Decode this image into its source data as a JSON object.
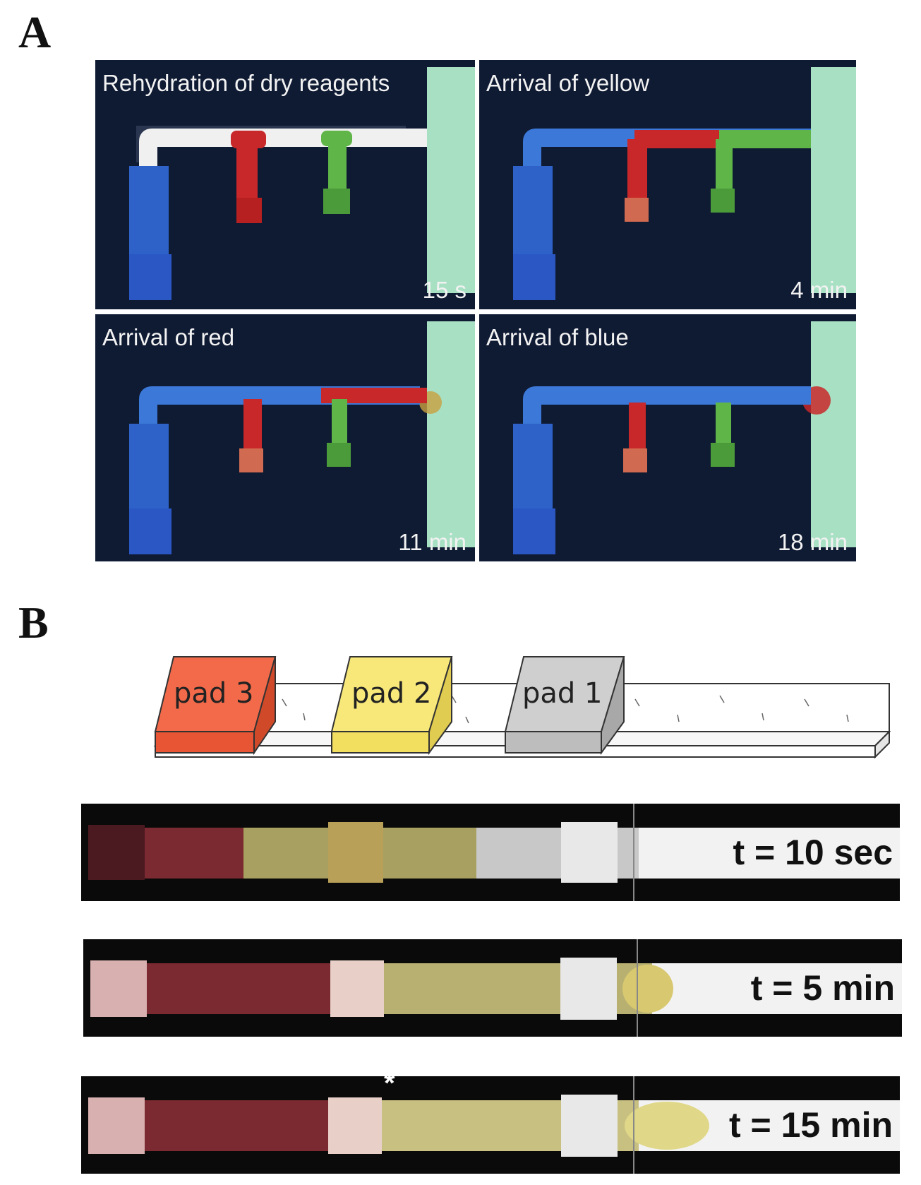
{
  "panel_a": {
    "label": "A",
    "frames": [
      {
        "caption": "Rehydration of dry reagents",
        "time": "15 s"
      },
      {
        "caption": "Arrival of yellow",
        "time": "4 min"
      },
      {
        "caption": "Arrival of red",
        "time": "11 min"
      },
      {
        "caption": "Arrival of blue",
        "time": "18 min"
      }
    ]
  },
  "panel_b": {
    "label": "B",
    "pads": [
      {
        "label": "pad 3",
        "color": "#f26a4a"
      },
      {
        "label": "pad 2",
        "color": "#f7e879"
      },
      {
        "label": "pad 1",
        "color": "#c8c8c8"
      }
    ],
    "strips": [
      {
        "time": "t = 10 sec"
      },
      {
        "time": "t = 5 min"
      },
      {
        "time": "t = 15 min"
      }
    ],
    "asterisk": "*"
  },
  "colors": {
    "blue": "#3b78d8",
    "red": "#c8282a",
    "green": "#5fb548",
    "absorbent": "#a8e0c4",
    "photo_bg": "#0f1a33"
  }
}
